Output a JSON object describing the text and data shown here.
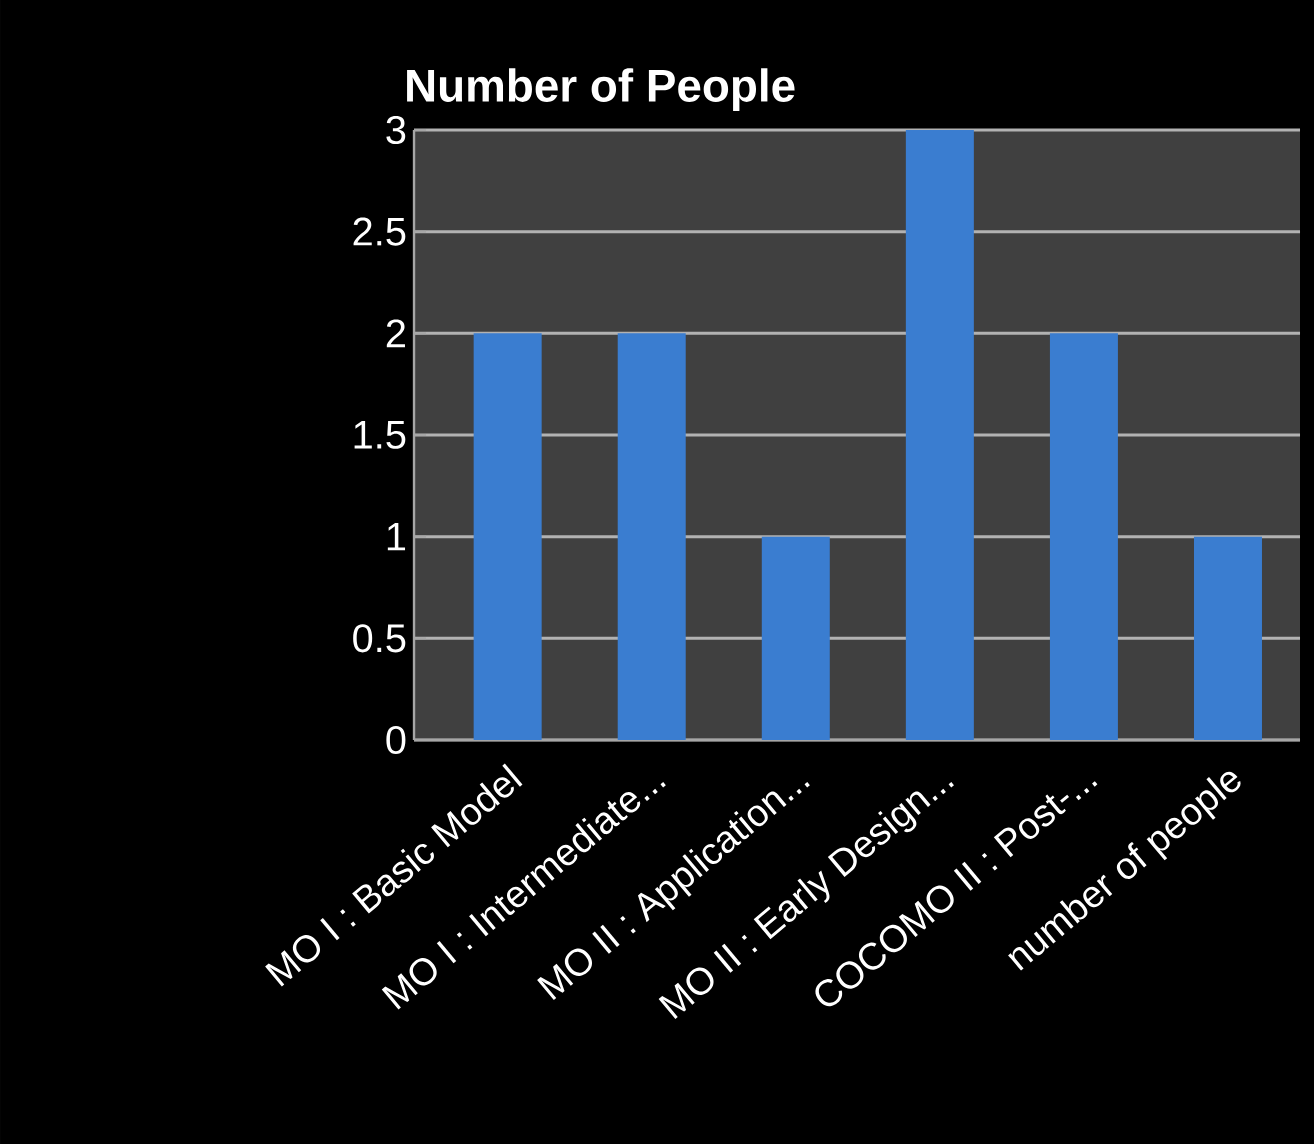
{
  "chart_data": {
    "type": "bar",
    "title": "Number of People",
    "categories": [
      "MO I : Basic Model",
      "MO I : Intermediate...",
      "MO II : Application...",
      "MO II : Early Design...",
      "COCOMO II : Post-...",
      "number of people"
    ],
    "values": [
      2,
      2,
      1,
      3,
      2,
      1
    ],
    "color": "#3a7dd0",
    "ylim": [
      0,
      3
    ],
    "yticks": [
      0,
      0.5,
      1,
      1.5,
      2,
      2.5,
      3
    ],
    "grid": "y"
  }
}
